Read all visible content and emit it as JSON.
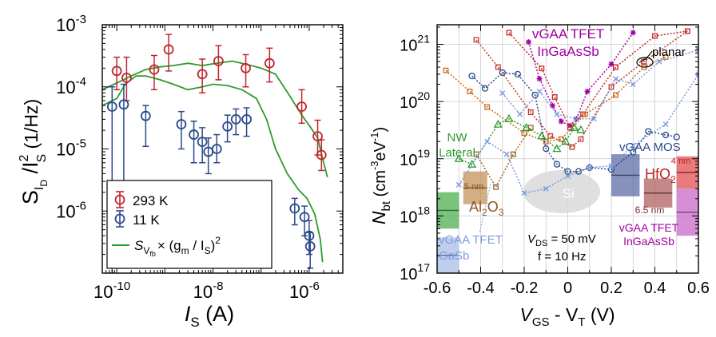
{
  "chart_data": [
    {
      "type": "scatter",
      "x_scale": "log",
      "y_scale": "log",
      "xlim": [
        5e-11,
        5e-06
      ],
      "ylim": [
        1e-07,
        0.001
      ],
      "xticks": [
        {
          "value": 1e-10,
          "base": "10",
          "exp": "-10"
        },
        {
          "value": 1e-08,
          "base": "10",
          "exp": "-8"
        },
        {
          "value": 1e-06,
          "base": "10",
          "exp": "-6"
        }
      ],
      "yticks": [
        {
          "value": 0.001,
          "base": "10",
          "exp": "-3"
        },
        {
          "value": 0.0001,
          "base": "10",
          "exp": "-4"
        },
        {
          "value": 1e-05,
          "base": "10",
          "exp": "-5"
        },
        {
          "value": 1e-06,
          "base": "10",
          "exp": "-6"
        }
      ],
      "xlabel": {
        "main": "I",
        "sub": "S",
        "unit": " (A)"
      },
      "ylabel": {
        "s": "S",
        "sub1": "I",
        "sub2": "D",
        "mid": " /I",
        "sup": "2",
        "sub3": "S",
        "unit": "  (1/Hz)"
      },
      "legend": {
        "position": "bottom-left",
        "entries": [
          {
            "label": "293 K",
            "color": "#c0262d",
            "marker": "circle-errorbar"
          },
          {
            "label": "11 K",
            "color": "#2b4a8b",
            "marker": "circle-errorbar"
          },
          {
            "label_main": "S",
            "label_sub": "V",
            "label_subsub": "fb",
            "label_rest": "× (g",
            "label_sub2": "m",
            "label_rest2": " / I",
            "label_sub3": "S",
            "label_end": ")",
            "label_sup": "2",
            "color": "#2e9a2e",
            "marker": "line"
          }
        ]
      },
      "series": [
        {
          "name": "293 K",
          "color": "#c0262d",
          "points": [
            {
              "x": 1e-10,
              "y": 0.00018,
              "lo": 9e-05,
              "hi": 0.0003
            },
            {
              "x": 1.6e-10,
              "y": 0.00014,
              "lo": 6e-05,
              "hi": 0.0003
            },
            {
              "x": 6e-10,
              "y": 0.00019,
              "lo": 9e-05,
              "hi": 0.00032
            },
            {
              "x": 1.2e-09,
              "y": 0.0004,
              "lo": 0.00018,
              "hi": 0.0007
            },
            {
              "x": 6e-09,
              "y": 0.00016,
              "lo": 8e-05,
              "hi": 0.00028
            },
            {
              "x": 1.3e-08,
              "y": 0.00026,
              "lo": 0.00013,
              "hi": 0.00046
            },
            {
              "x": 4.8e-08,
              "y": 0.0002,
              "lo": 0.0001,
              "hi": 0.00033
            },
            {
              "x": 1.5e-07,
              "y": 0.00024,
              "lo": 0.00012,
              "hi": 0.00042
            },
            {
              "x": 7e-07,
              "y": 4.8e-05,
              "lo": 2.6e-05,
              "hi": 9e-05
            },
            {
              "x": 1.5e-06,
              "y": 1.6e-05,
              "lo": 8e-06,
              "hi": 2.9e-05
            },
            {
              "x": 1.8e-06,
              "y": 8e-06,
              "lo": 4.5e-06,
              "hi": 1.4e-05
            }
          ]
        },
        {
          "name": "11 K",
          "color": "#2b4a8b",
          "points": [
            {
              "x": 8e-11,
              "y": 4.8e-05,
              "lo": 1e-07,
              "hi": 0.0001
            },
            {
              "x": 1.4e-10,
              "y": 5.2e-05,
              "lo": 2.4e-06,
              "hi": 0.00011
            },
            {
              "x": 4e-10,
              "y": 3.4e-05,
              "lo": 1.1e-05,
              "hi": 5e-05
            },
            {
              "x": 2.2e-09,
              "y": 2.5e-05,
              "lo": 1e-05,
              "hi": 4e-05
            },
            {
              "x": 4e-09,
              "y": 1.7e-05,
              "lo": 6e-06,
              "hi": 2.8e-05
            },
            {
              "x": 6e-09,
              "y": 1.3e-05,
              "lo": 6e-06,
              "hi": 2.2e-05
            },
            {
              "x": 8e-09,
              "y": 9e-06,
              "lo": 4e-06,
              "hi": 1.5e-05
            },
            {
              "x": 1.2e-08,
              "y": 1e-05,
              "lo": 6e-06,
              "hi": 1.7e-05
            },
            {
              "x": 2e-08,
              "y": 2.3e-05,
              "lo": 1.3e-05,
              "hi": 3.5e-05
            },
            {
              "x": 3e-08,
              "y": 3e-05,
              "lo": 1.7e-05,
              "hi": 4.4e-05
            },
            {
              "x": 5e-08,
              "y": 3e-05,
              "lo": 1.6e-05,
              "hi": 4.6e-05
            },
            {
              "x": 5e-07,
              "y": 1.1e-06,
              "lo": 6e-07,
              "hi": 1.6e-06
            },
            {
              "x": 8e-07,
              "y": 8e-07,
              "lo": 4e-07,
              "hi": 1.2e-06
            },
            {
              "x": 1e-06,
              "y": 4e-07,
              "lo": 2e-07,
              "hi": 7e-07
            },
            {
              "x": 1.05e-06,
              "y": 2.7e-07,
              "lo": 1.2e-07,
              "hi": 4.5e-07
            }
          ]
        },
        {
          "name": "fit 293 K",
          "color": "#2e9a2e",
          "line": [
            [
              5e-11,
              9e-05
            ],
            [
              1e-10,
              0.000115
            ],
            [
              2e-10,
              0.00015
            ],
            [
              4e-10,
              0.00019
            ],
            [
              8e-10,
              0.00021
            ],
            [
              1.5e-09,
              0.00022
            ],
            [
              3e-09,
              0.00024
            ],
            [
              6e-09,
              0.00022
            ],
            [
              1.2e-08,
              0.00024
            ],
            [
              2.5e-08,
              0.00026
            ],
            [
              5e-08,
              0.00023
            ],
            [
              1e-07,
              0.0002
            ],
            [
              2e-07,
              0.00016
            ],
            [
              4e-07,
              7e-05
            ],
            [
              7e-07,
              3.5e-05
            ],
            [
              1e-06,
              2.4e-05
            ],
            [
              1.5e-06,
              1.5e-05
            ],
            [
              2e-06,
              6e-06
            ],
            [
              2.4e-06,
              3.5e-06
            ]
          ]
        },
        {
          "name": "fit 11 K",
          "color": "#2e9a2e",
          "line": [
            [
              5e-11,
              5e-05
            ],
            [
              1e-10,
              6.5e-05
            ],
            [
              1.5e-10,
              0.00011
            ],
            [
              2.5e-10,
              0.00015
            ],
            [
              4e-10,
              0.00015
            ],
            [
              8e-10,
              0.00013
            ],
            [
              1.5e-09,
              0.00011
            ],
            [
              3e-09,
              9e-05
            ],
            [
              6e-09,
              0.0001
            ],
            [
              1e-08,
              0.00011
            ],
            [
              2e-08,
              0.000105
            ],
            [
              4e-08,
              9e-05
            ],
            [
              8e-08,
              6.5e-05
            ],
            [
              1.3e-07,
              3e-05
            ],
            [
              2e-07,
              1e-05
            ],
            [
              3.5e-07,
              4e-06
            ],
            [
              6e-07,
              2.2e-06
            ],
            [
              9e-07,
              1.6e-06
            ],
            [
              1.3e-06,
              9e-07
            ],
            [
              1.7e-06,
              3.5e-07
            ],
            [
              1.9e-06,
              1.5e-07
            ]
          ]
        }
      ]
    },
    {
      "type": "line",
      "x_scale": "linear",
      "y_scale": "log",
      "xlim": [
        -0.6,
        0.6
      ],
      "ylim": [
        1e+17,
        2.2e+21
      ],
      "xticks": [
        "-0.6",
        "-0.4",
        "-0.2",
        "0",
        "0.2",
        "0.4",
        "0.6"
      ],
      "yticks": [
        {
          "value": 1e+17,
          "base": "10",
          "exp": "17"
        },
        {
          "value": 1e+18,
          "base": "10",
          "exp": "18"
        },
        {
          "value": 1e+19,
          "base": "10",
          "exp": "19"
        },
        {
          "value": 1e+20,
          "base": "10",
          "exp": "20"
        },
        {
          "value": 1e+21,
          "base": "10",
          "exp": "21"
        }
      ],
      "grid": true,
      "xlabel": {
        "v": "V",
        "sub1": "GS",
        "mid": " - V",
        "sub2": "T",
        "unit": " (V)"
      },
      "ylabel": {
        "n": "N",
        "sub": "bt",
        "unit_a": " (cm",
        "sup1": "-3",
        "unit_b": "eV",
        "sup2": "-1",
        "unit_c": ")"
      },
      "bands": [
        {
          "label": "NW Lateral",
          "color": "#4caf50",
          "x0": -0.6,
          "x1": -0.5,
          "lo": 6e+17,
          "hi": 2.6e+18
        },
        {
          "label": "vGAA TFET GaSb",
          "color": "#a9bde8",
          "x0": -0.6,
          "x1": -0.5,
          "lo": 1e+17,
          "hi": 4.2e+17
        },
        {
          "label": "5 nm Al2O3",
          "color": "#c4915a",
          "x0": -0.48,
          "x1": -0.37,
          "lo": 1.6e+18,
          "hi": 6e+18
        },
        {
          "label": "vGAA MOS",
          "color": "#5d6ea6",
          "x0": 0.2,
          "x1": 0.33,
          "lo": 2.2e+18,
          "hi": 1.2e+19
        },
        {
          "label": "6.5 nm HfO2",
          "color": "#b06060",
          "x0": 0.35,
          "x1": 0.48,
          "lo": 1.4e+18,
          "hi": 4.5e+18
        },
        {
          "label": "4 nm HfO2",
          "color": "#e05050",
          "x0": 0.5,
          "x1": 0.6,
          "lo": 3e+18,
          "hi": 1.1e+19
        },
        {
          "label": "vGAA TFET InGaAsSb",
          "color": "#c86ac8",
          "x0": 0.5,
          "x1": 0.6,
          "lo": 4.5e+17,
          "hi": 3e+18
        }
      ],
      "annotations": {
        "vgaa_tfet_ingaassb_top": [
          "vGAA TFET",
          "InGaAsSb"
        ],
        "planar": "planar",
        "nw_lateral": [
          "NW",
          "Lateral"
        ],
        "vgaa_mos": "vGAA MOS",
        "si": "Si",
        "al2o3_thk": "5 nm",
        "al2o3_a": "Al",
        "al2o3_sub1": "2",
        "al2o3_b": "O",
        "al2o3_sub2": "3",
        "hfo2_thk_top": "4 nm",
        "hfo2_a": "HfO",
        "hfo2_sub": "2",
        "hfo2_thk_bot": "6.5 nm",
        "vgaa_tfet_ingaassb_bottom": [
          "vGAA TFET",
          "InGaAsSb"
        ],
        "vgaa_tfet_gasb": [
          "vGAA TFET",
          "GaSb"
        ],
        "vds_a": "V",
        "vds_sub": "DS",
        "vds_b": " = 50 mV",
        "freq": "f = 10 Hz"
      },
      "series": [
        {
          "color": "#a100a1",
          "marker": "star",
          "points": [
            [
              -0.18,
              1.1e+21
            ],
            [
              -0.13,
              2.5e+20
            ],
            [
              -0.07,
              8.5e+19
            ],
            [
              -0.03,
              4.5e+19
            ],
            [
              0.01,
              3.8e+19
            ],
            [
              0.04,
              5e+19
            ],
            [
              0.09,
              1.5e+20
            ],
            [
              0.2,
              4.5e+20
            ],
            [
              0.3,
              1.6e+21
            ]
          ]
        },
        {
          "color": "#c62828",
          "marker": "square",
          "points": [
            [
              -0.27,
              1.6e+21
            ],
            [
              -0.12,
              3.8e+20
            ],
            [
              -0.06,
              1.2e+20
            ],
            [
              0.01,
              3.5e+19
            ],
            [
              0.07,
              6e+19
            ],
            [
              0.22,
              4e+20
            ],
            [
              0.4,
              1.4e+21
            ],
            [
              0.55,
              1.7e+21
            ]
          ]
        },
        {
          "color": "#c0392b",
          "marker": "square",
          "points": [
            [
              -0.42,
              1.2e+21
            ],
            [
              -0.32,
              4e+20
            ],
            [
              -0.17,
              6.5e+19
            ],
            [
              -0.08,
              2.5e+19
            ],
            [
              0.02,
              1.6e+19
            ],
            [
              0.06,
              2.2e+19
            ],
            [
              0.2,
              1.8e+20
            ],
            [
              0.35,
              5e+20
            ],
            [
              0.55,
              1.7e+21
            ]
          ]
        },
        {
          "color": "#cc6a1a",
          "marker": "square",
          "points": [
            [
              -0.56,
              3.5e+20
            ],
            [
              -0.45,
              1.5e+20
            ],
            [
              -0.37,
              8e+19
            ],
            [
              -0.2,
              2.8e+19
            ],
            [
              -0.1,
              2e+19
            ],
            [
              -0.03,
              2.2e+19
            ],
            [
              0.08,
              6e+19
            ],
            [
              0.22,
              1.3e+20
            ],
            [
              0.35,
              4e+20
            ],
            [
              0.45,
              6e+20
            ]
          ]
        },
        {
          "color": "#a0622b",
          "marker": "square",
          "points": [
            [
              -0.42,
              1.2e+19
            ],
            [
              -0.33,
              3.2e+18
            ],
            [
              -0.25,
              1.2e+19
            ],
            [
              -0.17,
              3.5e+19
            ]
          ]
        },
        {
          "color": "#2e9a2e",
          "marker": "triangle",
          "points": [
            [
              -0.5,
              1e+19
            ],
            [
              -0.44,
              8e+18
            ],
            [
              -0.32,
              4e+19
            ],
            [
              -0.27,
              5e+19
            ],
            [
              -0.19,
              3.5e+19
            ],
            [
              -0.12,
              2.5e+19
            ],
            [
              -0.05,
              1.5e+19
            ],
            [
              -0.01,
              2e+19
            ],
            [
              0.03,
              3.5e+19
            ],
            [
              0.06,
              3.2e+19
            ]
          ]
        },
        {
          "color": "#2b4a8b",
          "marker": "circle",
          "points": [
            [
              -0.44,
              2.8e+20
            ],
            [
              -0.38,
              1.7e+20
            ],
            [
              -0.3,
              3.2e+20
            ],
            [
              -0.23,
              3e+20
            ],
            [
              -0.15,
              1.3e+20
            ],
            [
              -0.1,
              1.5e+19
            ],
            [
              -0.05,
              8e+18
            ],
            [
              0,
              6e+18
            ],
            [
              0.05,
              6e+18
            ],
            [
              0.1,
              7e+18
            ],
            [
              0.2,
              6.5e+18
            ],
            [
              0.3,
              1.3e+19
            ],
            [
              0.37,
              3e+19
            ],
            [
              0.45,
              2.6e+19
            ],
            [
              0.5,
              2.4e+19
            ]
          ]
        },
        {
          "color": "#7b9be0",
          "marker": "x",
          "points": [
            [
              -0.3,
              1.4e+20
            ],
            [
              -0.22,
              6e+19
            ],
            [
              -0.13,
              1.5e+20
            ],
            [
              -0.05,
              6e+19
            ],
            [
              0.04,
              5e+19
            ],
            [
              0.12,
              5e+19
            ],
            [
              0.22,
              2.5e+20
            ],
            [
              0.3,
              2e+20
            ],
            [
              0.42,
              5e+20
            ],
            [
              0.6,
              8e+20
            ]
          ]
        },
        {
          "color": "#7b9be0",
          "marker": "x",
          "points": [
            [
              -0.5,
              3.5e+18
            ],
            [
              -0.37,
              2e+19
            ],
            [
              -0.28,
              1.2e+19
            ],
            [
              -0.2,
              2.5e+18
            ],
            [
              -0.1,
              3e+18
            ],
            [
              0,
              5e+18
            ],
            [
              0.1,
              7e+18
            ],
            [
              0.2,
              7.5e+18
            ],
            [
              0.3,
              1.7e+19
            ],
            [
              0.45,
              4e+19
            ],
            [
              0.6,
              3e+20
            ]
          ]
        }
      ]
    }
  ]
}
